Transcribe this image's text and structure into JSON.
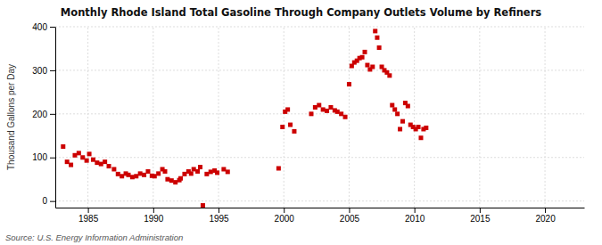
{
  "chart_data": {
    "type": "scatter",
    "title": "Monthly Rhode Island Total Gasoline Through Company Outlets Volume by Refiners",
    "ylabel": "Thousand Gallons per Day",
    "annotations": [
      "Source: U.S. Energy Information Administration"
    ],
    "color": "#cc0000",
    "marker": "square",
    "grid": true,
    "xlim": [
      1982.5,
      2023
    ],
    "ylim": [
      -15,
      400
    ],
    "xticks": [
      1985,
      1990,
      1995,
      2000,
      2005,
      2010,
      2015,
      2020
    ],
    "yticks": [
      0,
      100,
      200,
      300,
      400
    ],
    "x": [
      1983.1,
      1983.4,
      1983.7,
      1984.0,
      1984.3,
      1984.6,
      1984.9,
      1985.1,
      1985.4,
      1985.7,
      1986.0,
      1986.3,
      1986.6,
      1987.0,
      1987.3,
      1987.6,
      1987.9,
      1988.1,
      1988.4,
      1988.7,
      1989.0,
      1989.3,
      1989.6,
      1989.9,
      1990.1,
      1990.4,
      1990.7,
      1990.9,
      1991.1,
      1991.4,
      1991.7,
      1992.0,
      1992.1,
      1992.4,
      1992.7,
      1992.9,
      1993.1,
      1993.4,
      1993.6,
      1993.8,
      1994.1,
      1994.4,
      1994.7,
      1994.9,
      1995.4,
      1995.7,
      1999.6,
      1999.9,
      2000.1,
      2000.3,
      2000.5,
      2000.8,
      2002.1,
      2002.4,
      2002.7,
      2003.0,
      2003.3,
      2003.6,
      2003.9,
      2004.1,
      2004.4,
      2004.7,
      2005.0,
      2005.2,
      2005.4,
      2005.6,
      2005.8,
      2006.0,
      2006.2,
      2006.4,
      2006.6,
      2006.8,
      2007.0,
      2007.15,
      2007.3,
      2007.5,
      2007.7,
      2007.9,
      2008.1,
      2008.3,
      2008.5,
      2008.7,
      2008.9,
      2009.1,
      2009.3,
      2009.5,
      2009.7,
      2009.9,
      2010.1,
      2010.3,
      2010.5,
      2010.7,
      2010.9
    ],
    "values": [
      125,
      90,
      83,
      105,
      110,
      100,
      93,
      108,
      95,
      88,
      85,
      90,
      80,
      73,
      62,
      57,
      63,
      60,
      55,
      57,
      63,
      60,
      68,
      58,
      57,
      63,
      73,
      68,
      50,
      47,
      43,
      48,
      52,
      62,
      68,
      63,
      73,
      68,
      78,
      -10,
      62,
      67,
      70,
      65,
      73,
      67,
      75,
      170,
      205,
      210,
      175,
      160,
      200,
      215,
      220,
      210,
      207,
      215,
      208,
      205,
      200,
      193,
      268,
      310,
      318,
      322,
      328,
      330,
      342,
      312,
      302,
      308,
      390,
      375,
      352,
      308,
      300,
      295,
      288,
      220,
      210,
      200,
      165,
      183,
      225,
      218,
      175,
      170,
      165,
      170,
      145,
      165,
      168
    ]
  }
}
